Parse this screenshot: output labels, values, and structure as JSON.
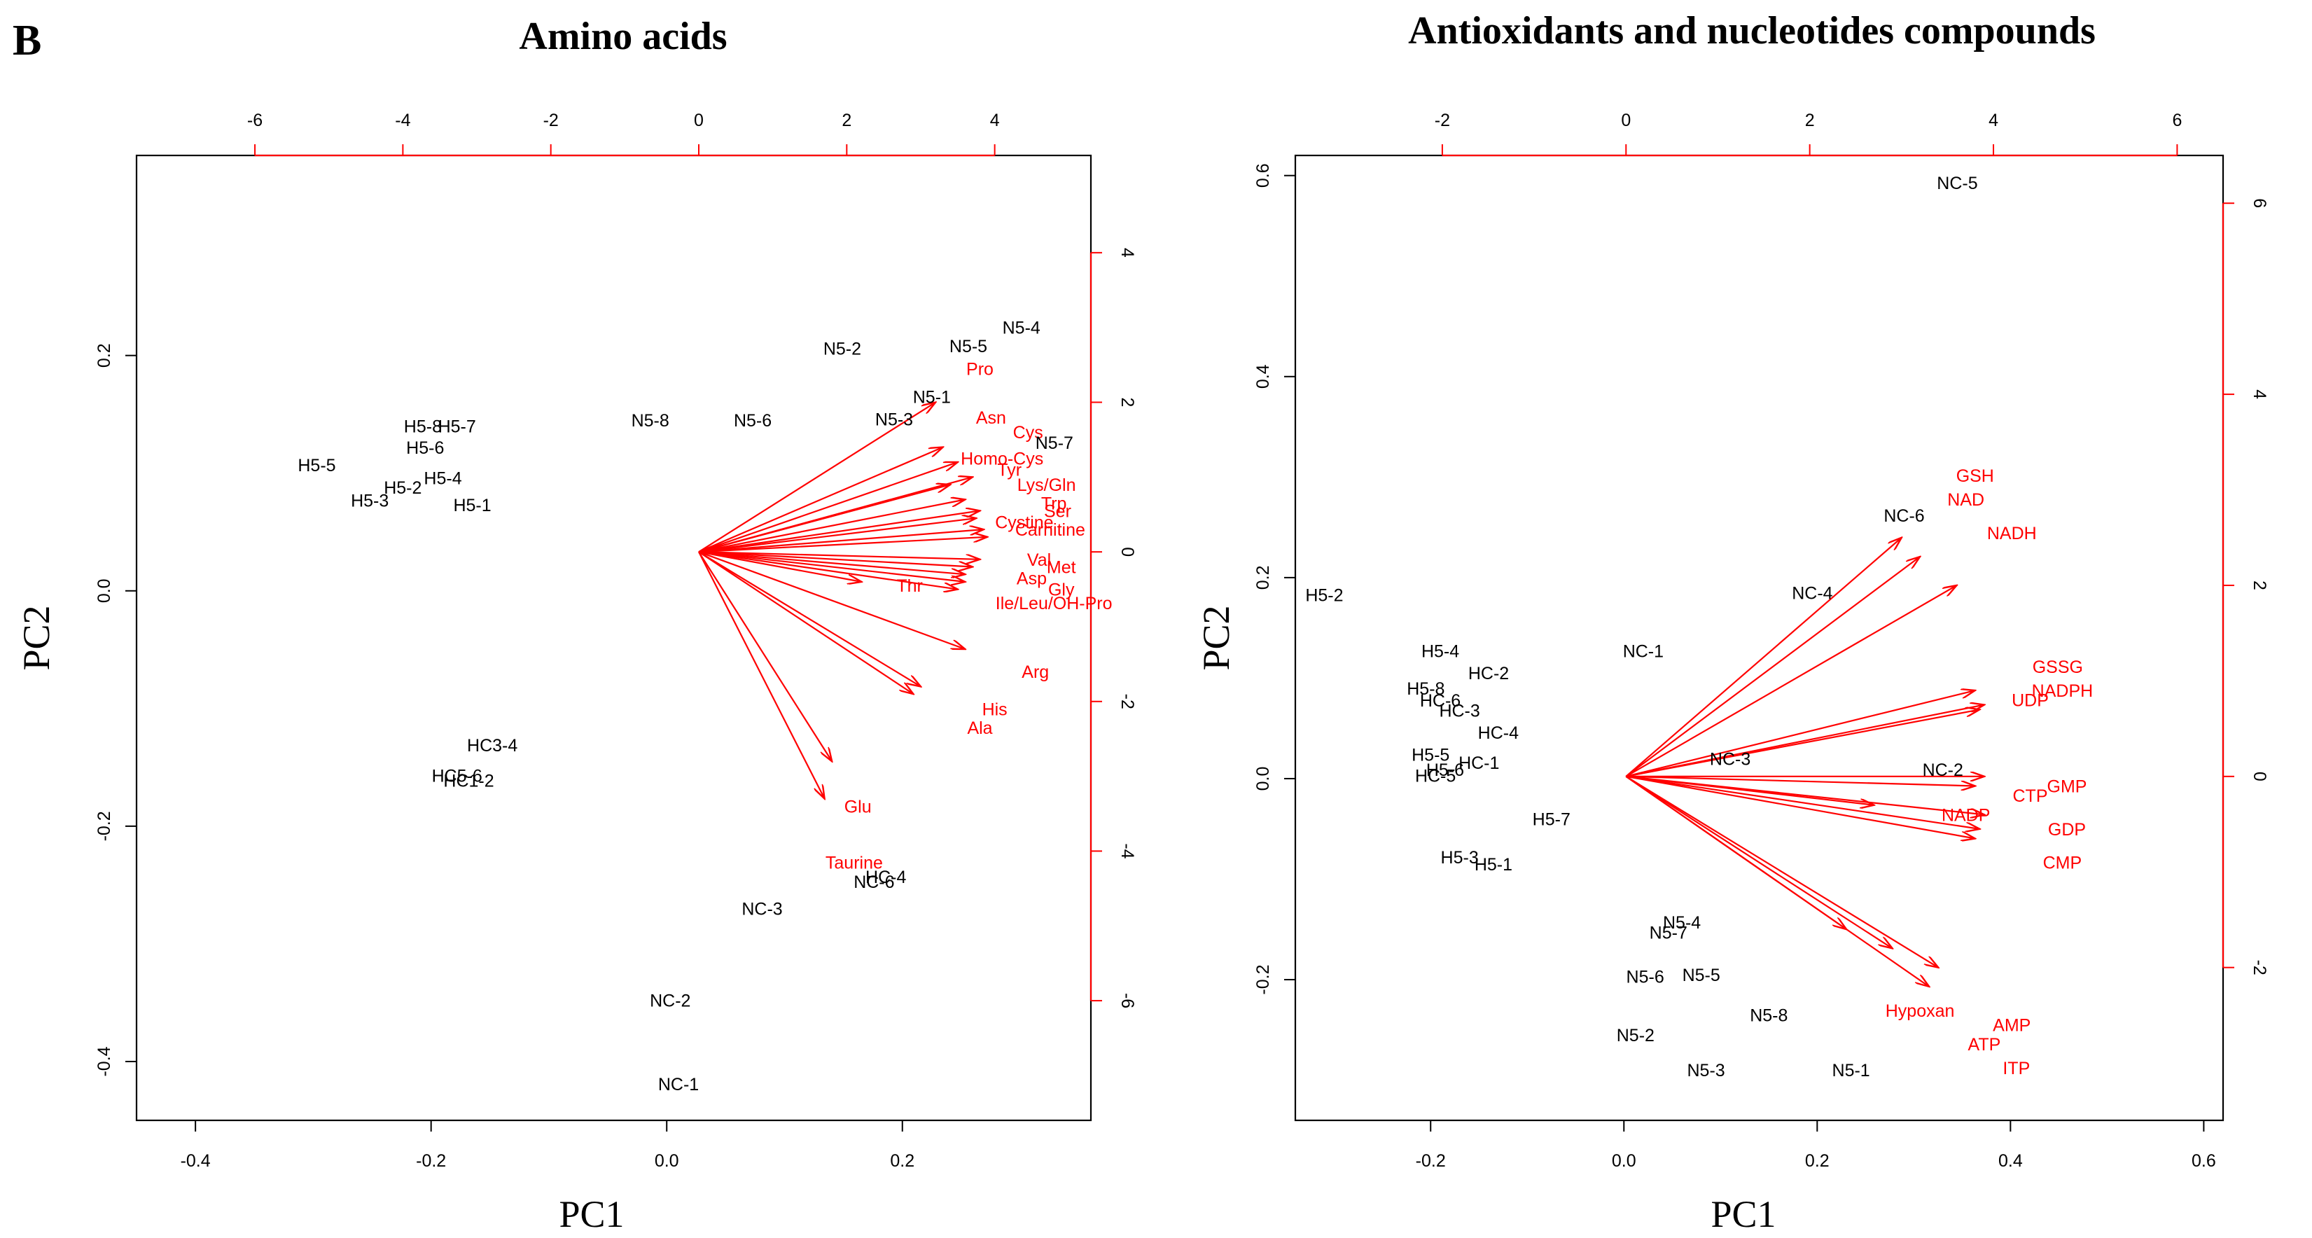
{
  "panel_label": "B",
  "colors": {
    "points": "#000000",
    "loadings": "#ff0000",
    "frame": "#000000"
  },
  "chart_data": [
    {
      "type": "scatter",
      "subtype": "pca-biplot",
      "title": "Amino acids",
      "xlabel": "PC1",
      "ylabel": "PC2",
      "xlim": [
        -0.45,
        0.36
      ],
      "ylim": [
        -0.45,
        0.37
      ],
      "xticks": [
        -0.4,
        -0.2,
        0.0,
        0.2
      ],
      "yticks": [
        -0.4,
        -0.2,
        0.0,
        0.2
      ],
      "xtick_labels": [
        "-0.4",
        "-0.2",
        "0.0",
        "0.2"
      ],
      "ytick_labels": [
        "-0.4",
        "-0.2",
        "0.0",
        "0.2"
      ],
      "loading_xlim": [
        -7.6,
        5.3
      ],
      "loading_ylim": [
        -7.6,
        5.3
      ],
      "top_ticks": [
        -6,
        -4,
        -2,
        0,
        2,
        4
      ],
      "right_ticks": [
        -6,
        -4,
        -2,
        0,
        2,
        4
      ],
      "top_tick_labels": [
        "-6",
        "-4",
        "-2",
        "0",
        "2",
        "4"
      ],
      "right_tick_labels": [
        "-6",
        "-4",
        "-2",
        "0",
        "2",
        "4"
      ],
      "points": [
        {
          "label": "H5-5",
          "x": -0.297,
          "y": 0.107
        },
        {
          "label": "H5-8",
          "x": -0.207,
          "y": 0.14
        },
        {
          "label": "H5-7",
          "x": -0.178,
          "y": 0.14
        },
        {
          "label": "H5-6",
          "x": -0.205,
          "y": 0.122
        },
        {
          "label": "H5-4",
          "x": -0.19,
          "y": 0.096
        },
        {
          "label": "H5-2",
          "x": -0.224,
          "y": 0.088
        },
        {
          "label": "H5-3",
          "x": -0.252,
          "y": 0.077
        },
        {
          "label": "H5-1",
          "x": -0.165,
          "y": 0.073
        },
        {
          "label": "N5-8",
          "x": -0.014,
          "y": 0.145
        },
        {
          "label": "N5-6",
          "x": 0.073,
          "y": 0.145
        },
        {
          "label": "N5-2",
          "x": 0.149,
          "y": 0.206
        },
        {
          "label": "N5-5",
          "x": 0.256,
          "y": 0.208
        },
        {
          "label": "N5-4",
          "x": 0.301,
          "y": 0.224
        },
        {
          "label": "N5-1",
          "x": 0.225,
          "y": 0.165
        },
        {
          "label": "N5-3",
          "x": 0.193,
          "y": 0.146
        },
        {
          "label": "N5-7",
          "x": 0.329,
          "y": 0.126
        },
        {
          "label": "HC3-4",
          "x": -0.148,
          "y": -0.131
        },
        {
          "label": "HC5-6",
          "x": -0.178,
          "y": -0.157
        },
        {
          "label": "HC1-2",
          "x": -0.168,
          "y": -0.161
        },
        {
          "label": "HC-4",
          "x": 0.186,
          "y": -0.243
        },
        {
          "label": "NC-6",
          "x": 0.176,
          "y": -0.247
        },
        {
          "label": "NC-3",
          "x": 0.081,
          "y": -0.27
        },
        {
          "label": "NC-2",
          "x": 0.003,
          "y": -0.348
        },
        {
          "label": "NC-1",
          "x": 0.01,
          "y": -0.419
        }
      ],
      "loadings": [
        {
          "label": "Pro",
          "x": 3.2,
          "y": 2.0,
          "tx": 3.8,
          "ty": 2.45
        },
        {
          "label": "Asn",
          "x": 3.3,
          "y": 1.4,
          "tx": 3.95,
          "ty": 1.8
        },
        {
          "label": "Cys",
          "x": 3.7,
          "y": 1.0,
          "tx": 4.45,
          "ty": 1.6
        },
        {
          "label": "Homo-Cys",
          "x": 3.5,
          "y": 1.2,
          "tx": 4.1,
          "ty": 1.25
        },
        {
          "label": "Tyr",
          "x": 3.4,
          "y": 0.9,
          "tx": 4.2,
          "ty": 1.1
        },
        {
          "label": "Lys/Gln",
          "x": 3.6,
          "y": 0.7,
          "tx": 4.7,
          "ty": 0.9
        },
        {
          "label": "Trp",
          "x": 3.8,
          "y": 0.55,
          "tx": 4.8,
          "ty": 0.65
        },
        {
          "label": "Ser",
          "x": 3.75,
          "y": 0.45,
          "tx": 4.85,
          "ty": 0.55
        },
        {
          "label": "Cystine",
          "x": 3.85,
          "y": 0.3,
          "tx": 4.4,
          "ty": 0.4
        },
        {
          "label": "Carnitine",
          "x": 3.9,
          "y": 0.2,
          "tx": 4.75,
          "ty": 0.3
        },
        {
          "label": "Val",
          "x": 3.8,
          "y": -0.1,
          "tx": 4.6,
          "ty": -0.1
        },
        {
          "label": "Met",
          "x": 3.7,
          "y": -0.2,
          "tx": 4.9,
          "ty": -0.2
        },
        {
          "label": "Asp",
          "x": 3.6,
          "y": -0.3,
          "tx": 4.5,
          "ty": -0.35
        },
        {
          "label": "Gly",
          "x": 3.6,
          "y": -0.4,
          "tx": 4.9,
          "ty": -0.5
        },
        {
          "label": "Ile/Leu/OH-Pro",
          "x": 3.5,
          "y": -0.5,
          "tx": 4.8,
          "ty": -0.68
        },
        {
          "label": "Thr",
          "x": 2.2,
          "y": -0.4,
          "tx": 2.85,
          "ty": -0.45
        },
        {
          "label": "Arg",
          "x": 3.6,
          "y": -1.3,
          "tx": 4.55,
          "ty": -1.6
        },
        {
          "label": "His",
          "x": 3.0,
          "y": -1.8,
          "tx": 4.0,
          "ty": -2.1
        },
        {
          "label": "Ala",
          "x": 2.9,
          "y": -1.9,
          "tx": 3.8,
          "ty": -2.35
        },
        {
          "label": "Glu",
          "x": 1.8,
          "y": -2.8,
          "tx": 2.15,
          "ty": -3.4
        },
        {
          "label": "Taurine",
          "x": 1.7,
          "y": -3.3,
          "tx": 2.1,
          "ty": -4.15
        }
      ]
    },
    {
      "type": "scatter",
      "subtype": "pca-biplot",
      "title": "Antioxidants and nucleotides compounds",
      "xlabel": "PC1",
      "ylabel": "PC2",
      "xlim": [
        -0.34,
        0.62
      ],
      "ylim": [
        -0.34,
        0.62
      ],
      "xticks": [
        -0.2,
        0.0,
        0.2,
        0.4,
        0.6
      ],
      "yticks": [
        -0.2,
        0.0,
        0.2,
        0.4,
        0.6
      ],
      "xtick_labels": [
        "-0.2",
        "0.0",
        "0.2",
        "0.4",
        "0.6"
      ],
      "ytick_labels": [
        "-0.2",
        "0.0",
        "0.2",
        "0.4",
        "0.6"
      ],
      "loading_xlim": [
        -3.6,
        6.5
      ],
      "loading_ylim": [
        -3.6,
        6.5
      ],
      "top_ticks": [
        -2,
        0,
        2,
        4,
        6
      ],
      "right_ticks": [
        -2,
        0,
        2,
        4,
        6
      ],
      "top_tick_labels": [
        "-2",
        "0",
        "2",
        "4",
        "6"
      ],
      "right_tick_labels": [
        "-2",
        "0",
        "2",
        "4",
        "6"
      ],
      "points": [
        {
          "label": "NC-5",
          "x": 0.345,
          "y": 0.593
        },
        {
          "label": "H5-2",
          "x": -0.31,
          "y": 0.183
        },
        {
          "label": "NC-6",
          "x": 0.29,
          "y": 0.262
        },
        {
          "label": "NC-4",
          "x": 0.195,
          "y": 0.185
        },
        {
          "label": "NC-1",
          "x": 0.02,
          "y": 0.127
        },
        {
          "label": "H5-4",
          "x": -0.19,
          "y": 0.127
        },
        {
          "label": "HC-2",
          "x": -0.14,
          "y": 0.105
        },
        {
          "label": "H5-8",
          "x": -0.205,
          "y": 0.09
        },
        {
          "label": "HC-6",
          "x": -0.19,
          "y": 0.078
        },
        {
          "label": "HC-3",
          "x": -0.17,
          "y": 0.068
        },
        {
          "label": "HC-4",
          "x": -0.13,
          "y": 0.046
        },
        {
          "label": "NC-3",
          "x": 0.11,
          "y": 0.02
        },
        {
          "label": "H5-5",
          "x": -0.2,
          "y": 0.024
        },
        {
          "label": "HC-1",
          "x": -0.15,
          "y": 0.016
        },
        {
          "label": "H5-6",
          "x": -0.185,
          "y": 0.009
        },
        {
          "label": "HC-5",
          "x": -0.195,
          "y": 0.003
        },
        {
          "label": "NC-2",
          "x": 0.33,
          "y": 0.009
        },
        {
          "label": "H5-7",
          "x": -0.075,
          "y": -0.04
        },
        {
          "label": "H5-3",
          "x": -0.17,
          "y": -0.078
        },
        {
          "label": "H5-1",
          "x": -0.135,
          "y": -0.085
        },
        {
          "label": "N5-4",
          "x": 0.06,
          "y": -0.143
        },
        {
          "label": "N5-7",
          "x": 0.046,
          "y": -0.153
        },
        {
          "label": "N5-6",
          "x": 0.022,
          "y": -0.197
        },
        {
          "label": "N5-5",
          "x": 0.08,
          "y": -0.195
        },
        {
          "label": "N5-8",
          "x": 0.15,
          "y": -0.235
        },
        {
          "label": "N5-2",
          "x": 0.012,
          "y": -0.255
        },
        {
          "label": "N5-3",
          "x": 0.085,
          "y": -0.29
        },
        {
          "label": "N5-1",
          "x": 0.235,
          "y": -0.29
        }
      ],
      "loadings": [
        {
          "label": "GSH",
          "x": 3.0,
          "y": 2.5,
          "tx": 3.8,
          "ty": 3.15
        },
        {
          "label": "NAD",
          "x": 3.2,
          "y": 2.3,
          "tx": 3.7,
          "ty": 2.9
        },
        {
          "label": "NADH",
          "x": 3.6,
          "y": 2.0,
          "tx": 4.2,
          "ty": 2.55
        },
        {
          "label": "GSSG",
          "x": 3.8,
          "y": 0.9,
          "tx": 4.7,
          "ty": 1.15
        },
        {
          "label": "NADPH",
          "x": 3.9,
          "y": 0.75,
          "tx": 4.75,
          "ty": 0.9
        },
        {
          "label": "UDP",
          "x": 3.85,
          "y": 0.7,
          "tx": 4.4,
          "ty": 0.8
        },
        {
          "label": "GMP",
          "x": 3.9,
          "y": 0.0,
          "tx": 4.8,
          "ty": -0.1
        },
        {
          "label": "CTP",
          "x": 3.8,
          "y": -0.1,
          "tx": 4.4,
          "ty": -0.2
        },
        {
          "label": "NADP",
          "x": 3.9,
          "y": -0.4,
          "tx": 3.7,
          "ty": -0.4
        },
        {
          "label": "GDP",
          "x": 3.85,
          "y": -0.55,
          "tx": 4.8,
          "ty": -0.55
        },
        {
          "label": "CMP",
          "x": 3.8,
          "y": -0.65,
          "tx": 4.75,
          "ty": -0.9
        },
        {
          "label": "Hypoxan",
          "x": 3.4,
          "y": -2.0,
          "tx": 3.2,
          "ty": -2.45
        },
        {
          "label": "AMP",
          "x": 3.3,
          "y": -2.2,
          "tx": 4.2,
          "ty": -2.6
        },
        {
          "label": "ATP",
          "x": 2.9,
          "y": -1.8,
          "tx": 3.9,
          "ty": -2.8
        },
        {
          "label": "ITP",
          "x": 2.4,
          "y": -1.6,
          "tx": 4.25,
          "ty": -3.05
        },
        {
          "label": "",
          "x": 2.7,
          "y": -0.3,
          "tx": 2.7,
          "ty": -0.3
        }
      ]
    }
  ]
}
